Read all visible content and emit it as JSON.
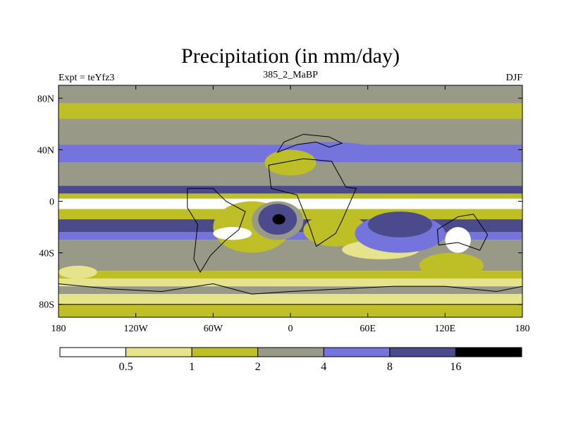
{
  "chart_data": {
    "type": "heatmap",
    "title": "Precipitation (in mm/day)",
    "left_label": "Expt = teYfz3",
    "center_label": "385_2_MaBP",
    "right_label": "DJF",
    "x_ticks": [
      {
        "label": "180",
        "value": -180
      },
      {
        "label": "120W",
        "value": -120
      },
      {
        "label": "60W",
        "value": -60
      },
      {
        "label": "0",
        "value": 0
      },
      {
        "label": "60E",
        "value": 60
      },
      {
        "label": "120E",
        "value": 120
      },
      {
        "label": "180",
        "value": 180
      }
    ],
    "y_ticks": [
      {
        "label": "80N",
        "value": 80
      },
      {
        "label": "40N",
        "value": 40
      },
      {
        "label": "0",
        "value": 0
      },
      {
        "label": "40S",
        "value": -40
      },
      {
        "label": "80S",
        "value": -80
      }
    ],
    "xlim": [
      -180,
      180
    ],
    "ylim": [
      -90,
      90
    ],
    "colorbar": {
      "levels": [
        "0.5",
        "1",
        "2",
        "4",
        "8",
        "16"
      ],
      "colors": [
        "#ffffff",
        "#e5e48c",
        "#bebe27",
        "#999988",
        "#7474dc",
        "#4a4a8c",
        "#000000"
      ]
    },
    "bands": [
      {
        "lat": [
          76,
          90
        ],
        "level": 3
      },
      {
        "lat": [
          64,
          76
        ],
        "level": 2
      },
      {
        "lat": [
          44,
          64
        ],
        "level": 3
      },
      {
        "lat": [
          30,
          44
        ],
        "level": 4
      },
      {
        "lat": [
          12,
          30
        ],
        "level": 3
      },
      {
        "lat": [
          6,
          12
        ],
        "level": 5
      },
      {
        "lat": [
          2,
          6
        ],
        "level": 2
      },
      {
        "lat": [
          -6,
          2
        ],
        "level": 0
      },
      {
        "lat": [
          -14,
          -6
        ],
        "level": 2
      },
      {
        "lat": [
          -24,
          -14
        ],
        "level": 5
      },
      {
        "lat": [
          -30,
          -24
        ],
        "level": 4
      },
      {
        "lat": [
          -54,
          -30
        ],
        "level": 3
      },
      {
        "lat": [
          -60,
          -54
        ],
        "level": 2
      },
      {
        "lat": [
          -66,
          -60
        ],
        "level": 1
      },
      {
        "lat": [
          -72,
          -66
        ],
        "level": 3
      },
      {
        "lat": [
          -80,
          -72
        ],
        "level": 1
      },
      {
        "lat": [
          -90,
          -80
        ],
        "level": 2
      }
    ],
    "patches": [
      {
        "lon": [
          -60,
          0
        ],
        "lat": [
          -40,
          0
        ],
        "level": 2
      },
      {
        "lon": [
          -30,
          10
        ],
        "lat": [
          -30,
          0
        ],
        "level": 3
      },
      {
        "lon": [
          -25,
          5
        ],
        "lat": [
          -26,
          -2
        ],
        "level": 5
      },
      {
        "lon": [
          -14,
          -4
        ],
        "lat": [
          -18,
          -10
        ],
        "level": 6
      },
      {
        "lon": [
          -60,
          -30
        ],
        "lat": [
          -30,
          -20
        ],
        "level": 0
      },
      {
        "lon": [
          10,
          60
        ],
        "lat": [
          -35,
          -10
        ],
        "level": 2
      },
      {
        "lon": [
          40,
          100
        ],
        "lat": [
          -45,
          -30
        ],
        "level": 1
      },
      {
        "lon": [
          50,
          120
        ],
        "lat": [
          -40,
          -10
        ],
        "level": 4
      },
      {
        "lon": [
          60,
          110
        ],
        "lat": [
          -28,
          -8
        ],
        "level": 5
      },
      {
        "lon": [
          120,
          140
        ],
        "lat": [
          -40,
          -20
        ],
        "level": 0
      },
      {
        "lon": [
          100,
          150
        ],
        "lat": [
          -60,
          -40
        ],
        "level": 2
      },
      {
        "lon": [
          -20,
          20
        ],
        "lat": [
          20,
          40
        ],
        "level": 2
      },
      {
        "lon": [
          0,
          60
        ],
        "lat": [
          38,
          46
        ],
        "level": 4
      },
      {
        "lon": [
          -180,
          -150
        ],
        "lat": [
          -60,
          -50
        ],
        "level": 1
      }
    ],
    "outlines": [
      {
        "name": "south-america-outline",
        "points": [
          [
            -80,
            10
          ],
          [
            -60,
            10
          ],
          [
            -50,
            0
          ],
          [
            -35,
            -8
          ],
          [
            -40,
            -22
          ],
          [
            -50,
            -30
          ],
          [
            -62,
            -42
          ],
          [
            -70,
            -55
          ],
          [
            -75,
            -45
          ],
          [
            -72,
            -18
          ],
          [
            -80,
            -5
          ]
        ]
      },
      {
        "name": "africa-outline",
        "points": [
          [
            -17,
            28
          ],
          [
            10,
            33
          ],
          [
            32,
            31
          ],
          [
            43,
            11
          ],
          [
            51,
            10
          ],
          [
            40,
            -15
          ],
          [
            35,
            -25
          ],
          [
            20,
            -35
          ],
          [
            15,
            -20
          ],
          [
            9,
            -5
          ],
          [
            5,
            5
          ],
          [
            -15,
            10
          ]
        ]
      },
      {
        "name": "australia-outline",
        "points": [
          [
            114,
            -22
          ],
          [
            130,
            -12
          ],
          [
            142,
            -10
          ],
          [
            153,
            -26
          ],
          [
            147,
            -38
          ],
          [
            130,
            -32
          ],
          [
            115,
            -34
          ]
        ]
      },
      {
        "name": "antarctica-outline",
        "points": [
          [
            -180,
            -64
          ],
          [
            -140,
            -68
          ],
          [
            -100,
            -70
          ],
          [
            -60,
            -64
          ],
          [
            -30,
            -72
          ],
          [
            0,
            -70
          ],
          [
            40,
            -68
          ],
          [
            80,
            -66
          ],
          [
            120,
            -66
          ],
          [
            160,
            -70
          ],
          [
            180,
            -66
          ],
          [
            180,
            -80
          ],
          [
            -180,
            -80
          ]
        ]
      },
      {
        "name": "europe-outline",
        "points": [
          [
            -10,
            38
          ],
          [
            5,
            44
          ],
          [
            20,
            46
          ],
          [
            30,
            42
          ],
          [
            40,
            45
          ],
          [
            30,
            50
          ],
          [
            10,
            52
          ],
          [
            -5,
            46
          ]
        ]
      }
    ]
  }
}
